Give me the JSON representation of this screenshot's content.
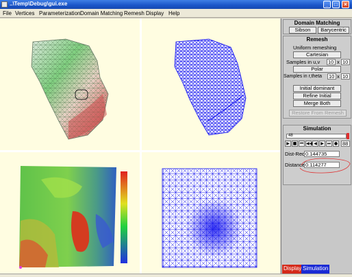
{
  "window": {
    "title": "..\\Temp\\Debug\\gui.exe"
  },
  "menu": [
    "File",
    "Vertices",
    "Parameterization",
    "Domain Matching",
    "Remesh",
    "Display",
    "Help"
  ],
  "domain_matching": {
    "title": "Domain Matching",
    "sibson": "Sibson",
    "barycentric": "Barycentric"
  },
  "remesh": {
    "title": "Remesh",
    "subtitle": "Uniform remeshing",
    "cartesian": "Cartesian",
    "samples_uv_label": "Samples in u,v",
    "samples_u": "10",
    "x1": "x",
    "samples_v": "10",
    "polar": "Polar",
    "samples_rtheta_label": "Samples in r,theta",
    "samples_r": "10",
    "x2": "x",
    "samples_theta": "10",
    "initial_dominant": "Initial dominant",
    "refine_initial": "Refine Initial",
    "merge_both": "Merge Both",
    "restore": "Restore From Remesh"
  },
  "simulation": {
    "title": "Simulation",
    "slider_value": "48",
    "frame_value": "88",
    "dist_red_label": "Dist-Red",
    "dist_red_value": "0.144735",
    "distance_label": "Distance",
    "distance_value": "0.114277"
  },
  "tabs": {
    "display": "Display",
    "simulation": "Simulation"
  },
  "colors": {
    "mesh_blue": "#1010ee",
    "display_tab": "#d42a1a",
    "simulation_tab": "#1a2ad4",
    "annotation": "#e03030"
  }
}
